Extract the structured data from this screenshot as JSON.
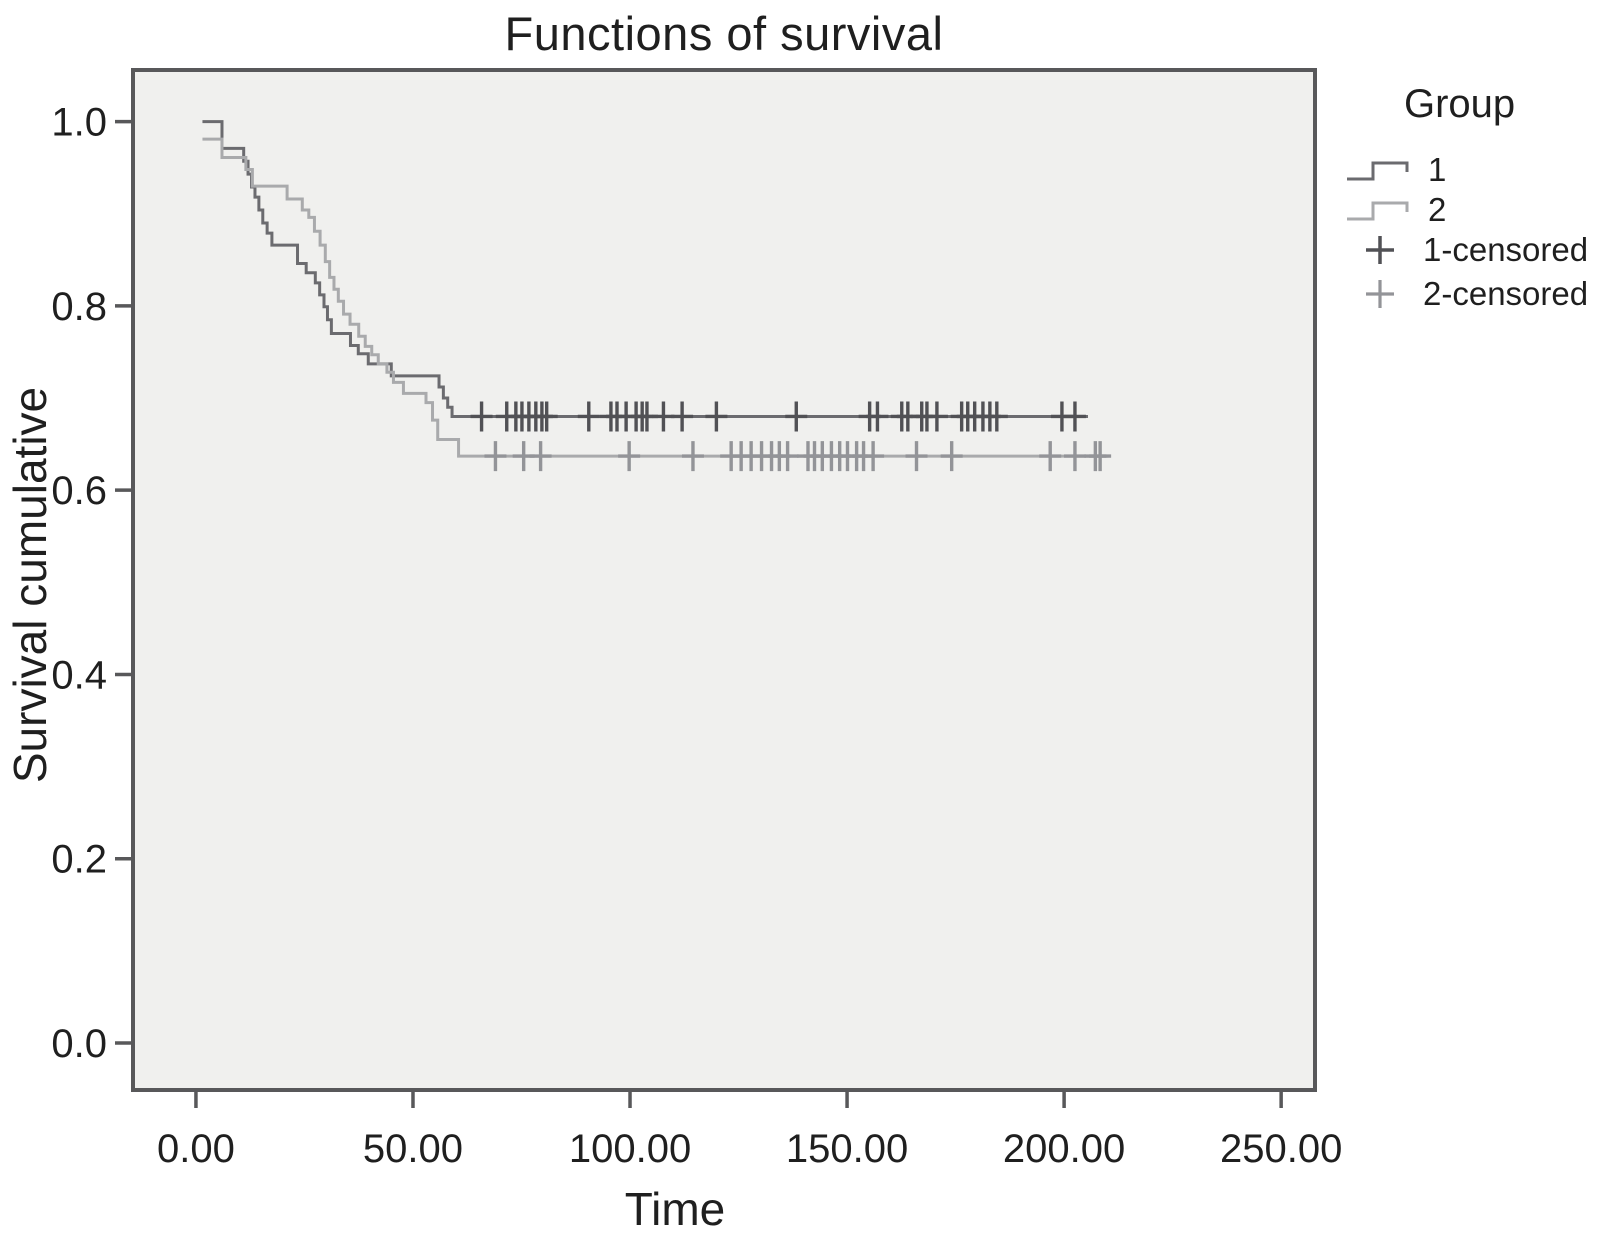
{
  "page": {
    "background": "#ffffff"
  },
  "chart_data": {
    "type": "line",
    "subtype": "kaplan-meier-step-function",
    "title": "Functions of survival",
    "xlabel": "Time",
    "ylabel": "Survival cumulative",
    "x_ticks": [
      "0.00",
      "50.00",
      "100.00",
      "150.00",
      "200.00",
      "250.00"
    ],
    "x_tick_values": [
      0,
      50,
      100,
      150,
      200,
      250
    ],
    "y_ticks": [
      "0.0",
      "0.2",
      "0.4",
      "0.6",
      "0.8",
      "1.0"
    ],
    "y_tick_values": [
      0,
      0.2,
      0.4,
      0.6,
      0.8,
      1.0
    ],
    "xlim": [
      -14.5,
      257.8
    ],
    "ylim": [
      -0.051,
      1.056
    ],
    "grid": false,
    "plot_background": "#f0f0ee",
    "frame_color": "#58585a",
    "tick_color": "#58585a",
    "text_color": "#1f1f1f",
    "legend": {
      "title": "Group",
      "position": "right",
      "items": [
        {
          "label": "1",
          "type": "step-line",
          "color": "#6b6b6f"
        },
        {
          "label": "2",
          "type": "step-line",
          "color": "#a9aaac"
        },
        {
          "label": "1-censored",
          "type": "plus",
          "color": "#515155"
        },
        {
          "label": "2-censored",
          "type": "plus",
          "color": "#939498"
        }
      ]
    },
    "series": [
      {
        "name": "1",
        "color": "#6b6b6f",
        "end_time": 205.5,
        "steps": [
          [
            1.5,
            1.0
          ],
          [
            6,
            0.971
          ],
          [
            11,
            0.957
          ],
          [
            12,
            0.943
          ],
          [
            12.8,
            0.929
          ],
          [
            13.6,
            0.918
          ],
          [
            14.5,
            0.904
          ],
          [
            15.4,
            0.89
          ],
          [
            16.4,
            0.879
          ],
          [
            17.5,
            0.866
          ],
          [
            23.4,
            0.846
          ],
          [
            25.4,
            0.836
          ],
          [
            27.5,
            0.825
          ],
          [
            28.5,
            0.812
          ],
          [
            29.5,
            0.799
          ],
          [
            30.3,
            0.785
          ],
          [
            31.2,
            0.77
          ],
          [
            35.6,
            0.757
          ],
          [
            37.4,
            0.748
          ],
          [
            39.7,
            0.737
          ],
          [
            45,
            0.724
          ],
          [
            56,
            0.712
          ],
          [
            57,
            0.7
          ],
          [
            58,
            0.69
          ],
          [
            59,
            0.68
          ]
        ]
      },
      {
        "name": "2",
        "color": "#a9aaac",
        "end_time": 210.2,
        "steps": [
          [
            1.5,
            0.981
          ],
          [
            6,
            0.961
          ],
          [
            11.5,
            0.948
          ],
          [
            13,
            0.93
          ],
          [
            21,
            0.916
          ],
          [
            24.5,
            0.904
          ],
          [
            26,
            0.896
          ],
          [
            27.3,
            0.881
          ],
          [
            28.6,
            0.866
          ],
          [
            29.8,
            0.848
          ],
          [
            30.8,
            0.831
          ],
          [
            31.8,
            0.818
          ],
          [
            32.8,
            0.805
          ],
          [
            34,
            0.791
          ],
          [
            35.5,
            0.78
          ],
          [
            37.5,
            0.767
          ],
          [
            39,
            0.756
          ],
          [
            40.5,
            0.747
          ],
          [
            42,
            0.737
          ],
          [
            44,
            0.728
          ],
          [
            45.5,
            0.717
          ],
          [
            47.8,
            0.705
          ],
          [
            53,
            0.695
          ],
          [
            54.5,
            0.676
          ],
          [
            55.7,
            0.655
          ],
          [
            60.5,
            0.637
          ]
        ]
      }
    ],
    "censored": [
      {
        "name": "1-censored",
        "color": "#515155",
        "survival": 0.68,
        "times": [
          65.8,
          71.6,
          73.7,
          75.1,
          76.7,
          78.3,
          79.7,
          80.8,
          90.5,
          95.6,
          97.0,
          99.1,
          101.4,
          102.8,
          103.9,
          107.7,
          112.0,
          119.9,
          138.3,
          155.2,
          157.0,
          162.6,
          164.0,
          167.2,
          168.4,
          170.7,
          176.4,
          177.8,
          179.4,
          181.3,
          182.9,
          184.5,
          199.5,
          202.5
        ]
      },
      {
        "name": "2-censored",
        "color": "#939498",
        "survival": 0.637,
        "times": [
          69.0,
          75.5,
          79.4,
          99.8,
          114.5,
          123.3,
          125.6,
          127.9,
          130.3,
          132.6,
          134.4,
          136.3,
          141.0,
          142.5,
          144.3,
          146.4,
          148.3,
          150.1,
          152.2,
          153.8,
          156.0,
          166.0,
          174.1,
          196.8,
          202.5,
          207.2,
          208.3
        ]
      }
    ]
  }
}
